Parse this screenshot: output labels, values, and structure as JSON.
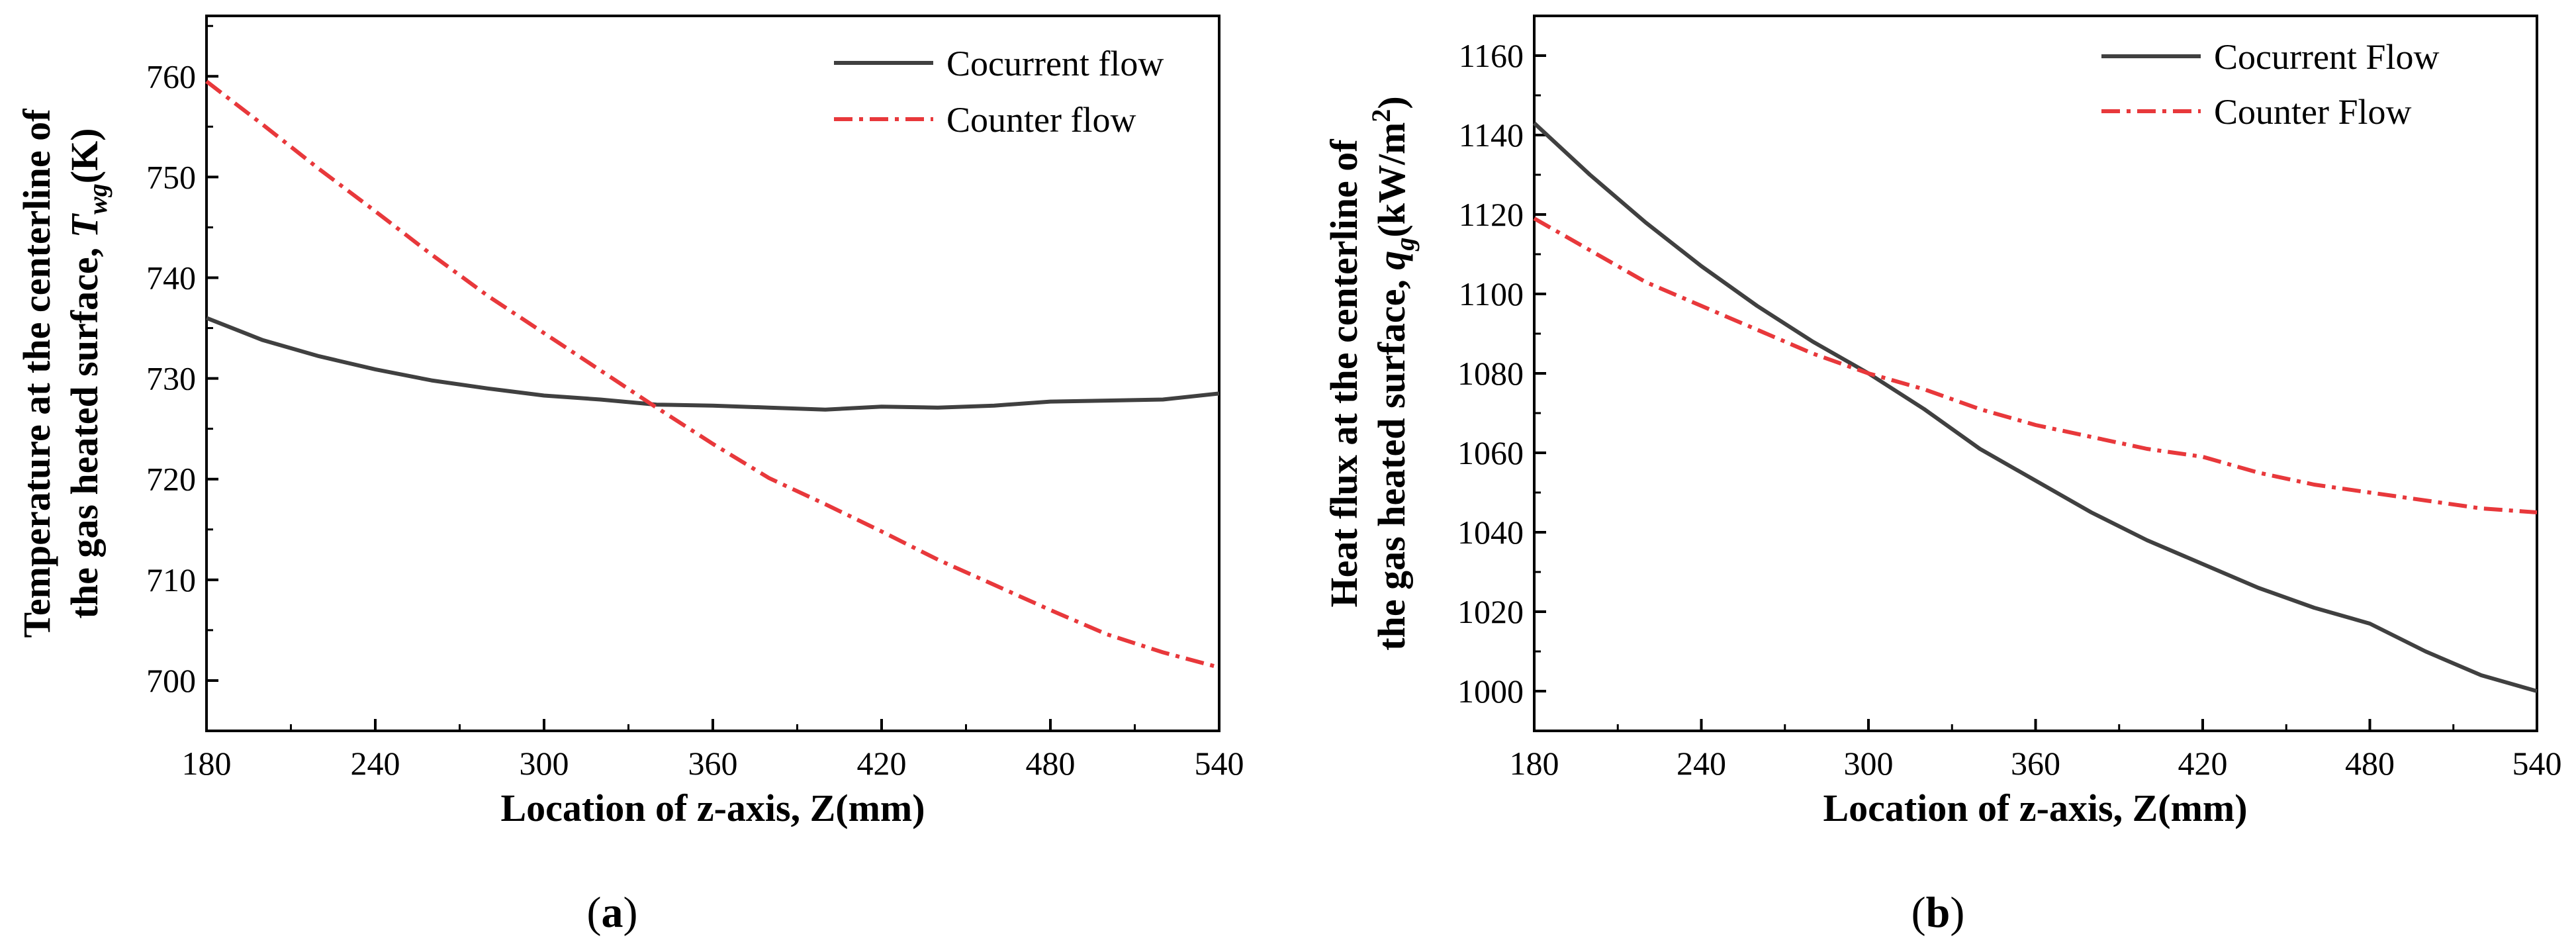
{
  "chart_data": [
    {
      "type": "line",
      "caption": "(a)",
      "caption_open": "(",
      "caption_letter": "a",
      "caption_close": ")",
      "xlabel": "Location of z-axis, Z(mm)",
      "ylabel_line1": "Temperature at the centerline of",
      "ylabel_line2_prefix": "the gas heated surface, ",
      "ylabel_symbol": "T",
      "ylabel_subscript": "wg",
      "ylabel_unit": "(K)",
      "xlim": [
        180,
        540
      ],
      "ylim": [
        695,
        766
      ],
      "xticks": [
        180,
        240,
        300,
        360,
        420,
        480,
        540
      ],
      "yticks": [
        700,
        710,
        720,
        730,
        740,
        750,
        760
      ],
      "legend_position": "top-right",
      "series": [
        {
          "name": "Cocurrent flow",
          "color": "#404040",
          "style": "solid",
          "x": [
            180,
            200,
            220,
            240,
            260,
            280,
            300,
            320,
            340,
            360,
            380,
            400,
            420,
            440,
            460,
            480,
            500,
            520,
            540
          ],
          "y": [
            736,
            733.8,
            732.2,
            730.9,
            729.8,
            729.0,
            728.3,
            727.9,
            727.4,
            727.3,
            727.1,
            726.9,
            727.2,
            727.1,
            727.3,
            727.7,
            727.8,
            727.9,
            728.5
          ]
        },
        {
          "name": "Counter flow",
          "color": "#e8383b",
          "style": "dashdot",
          "x": [
            180,
            200,
            220,
            240,
            260,
            280,
            300,
            320,
            340,
            360,
            380,
            400,
            420,
            440,
            460,
            480,
            500,
            520,
            540
          ],
          "y": [
            759.5,
            755.2,
            750.8,
            746.6,
            742.3,
            738.2,
            734.5,
            730.8,
            727.1,
            723.5,
            720.1,
            717.5,
            714.8,
            712.0,
            709.5,
            707.0,
            704.6,
            702.8,
            701.3
          ]
        }
      ]
    },
    {
      "type": "line",
      "caption": "(b)",
      "caption_open": "(",
      "caption_letter": "b",
      "caption_close": ")",
      "xlabel": "Location of z-axis, Z(mm)",
      "ylabel_line1": "Heat flux at the centerline of",
      "ylabel_line2_prefix": "the gas heated surface, ",
      "ylabel_symbol": "q",
      "ylabel_subscript": "g",
      "ylabel_unit": "(kW/m",
      "ylabel_superscript": "2",
      "ylabel_close": ")",
      "xlim": [
        180,
        540
      ],
      "ylim": [
        990,
        1170
      ],
      "xticks": [
        180,
        240,
        300,
        360,
        420,
        480,
        540
      ],
      "yticks": [
        1000,
        1020,
        1040,
        1060,
        1080,
        1100,
        1120,
        1140,
        1160
      ],
      "legend_position": "top-right",
      "series": [
        {
          "name": "Cocurrent Flow",
          "color": "#404040",
          "style": "solid",
          "x": [
            180,
            200,
            220,
            240,
            260,
            280,
            300,
            320,
            340,
            360,
            380,
            400,
            420,
            440,
            460,
            480,
            500,
            520,
            540
          ],
          "y": [
            1143,
            1130,
            1118,
            1107,
            1097,
            1088,
            1080,
            1071,
            1061,
            1053,
            1045,
            1038,
            1032,
            1026,
            1021,
            1017,
            1010,
            1004,
            1000
          ]
        },
        {
          "name": "Counter Flow",
          "color": "#e8383b",
          "style": "dashdot",
          "x": [
            180,
            200,
            220,
            240,
            260,
            280,
            300,
            320,
            340,
            360,
            380,
            400,
            420,
            440,
            460,
            480,
            500,
            520,
            540
          ],
          "y": [
            1119,
            1111,
            1103,
            1097,
            1091,
            1085,
            1080,
            1076,
            1071,
            1067,
            1064,
            1061,
            1059,
            1055,
            1052,
            1050,
            1048,
            1046,
            1045
          ]
        }
      ]
    }
  ]
}
